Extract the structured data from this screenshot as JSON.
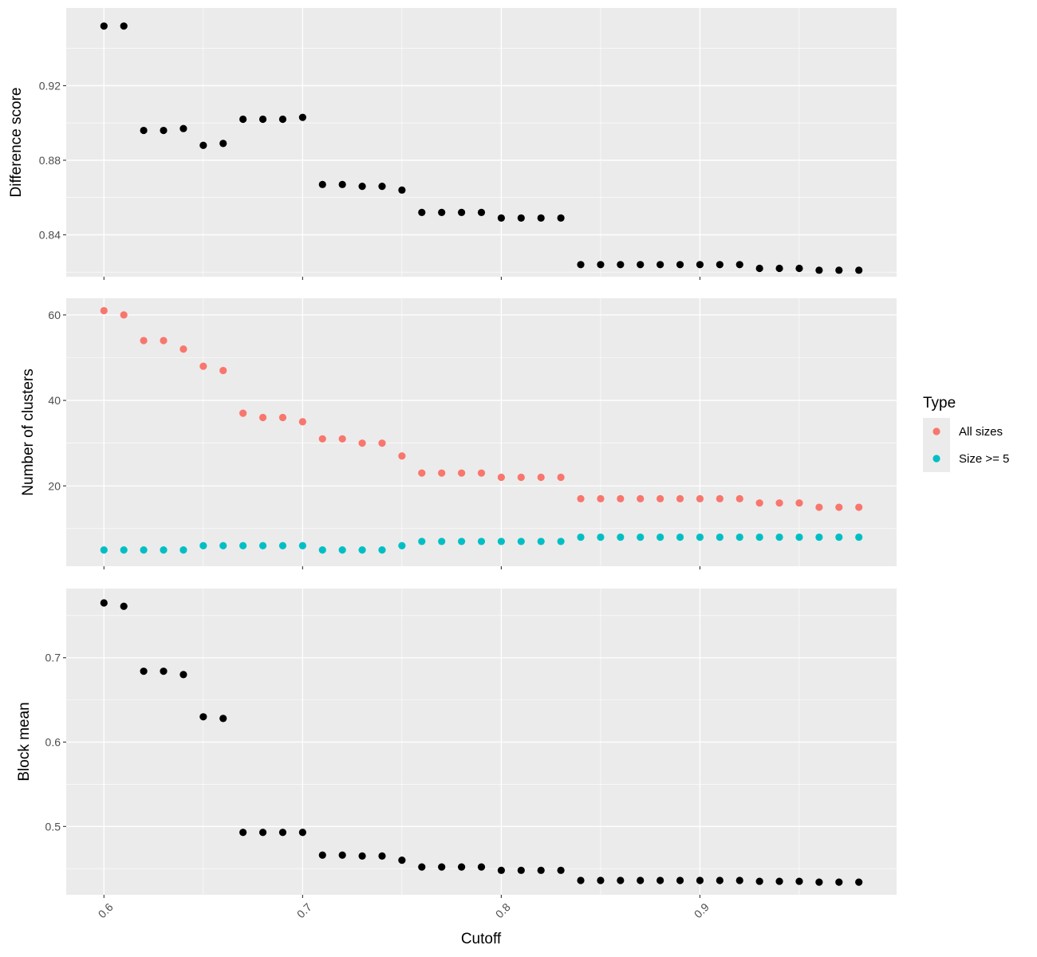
{
  "chart_data": {
    "type": "scatter",
    "xlabel": "Cutoff",
    "x_ticks": [
      0.6,
      0.7,
      0.8,
      0.9
    ],
    "x_tick_labels": [
      "0.6",
      "0.7",
      "0.8",
      "0.9"
    ],
    "xlim": [
      0.581,
      0.999
    ],
    "grid": true,
    "legend": {
      "title": "Type",
      "placement": "right",
      "entries": [
        {
          "label": "All sizes",
          "color": "#F8766D"
        },
        {
          "label": "Size >= 5",
          "color": "#00BFC4"
        }
      ]
    },
    "x": [
      0.6,
      0.61,
      0.62,
      0.63,
      0.64,
      0.65,
      0.66,
      0.67,
      0.68,
      0.69,
      0.7,
      0.71,
      0.72,
      0.73,
      0.74,
      0.75,
      0.76,
      0.77,
      0.78,
      0.79,
      0.8,
      0.81,
      0.82,
      0.83,
      0.84,
      0.85,
      0.86,
      0.87,
      0.88,
      0.89,
      0.9,
      0.91,
      0.92,
      0.93,
      0.94,
      0.95,
      0.96,
      0.97,
      0.98
    ],
    "panels": [
      {
        "ylabel": "Difference score",
        "ylim": [
          0.8175,
          0.9617
        ],
        "y_ticks": [
          0.84,
          0.88,
          0.92
        ],
        "y_tick_labels": [
          "0.84",
          "0.88",
          "0.92"
        ],
        "series": [
          {
            "color": "#000000",
            "values": [
              0.952,
              0.952,
              0.896,
              0.896,
              0.897,
              0.888,
              0.889,
              0.902,
              0.902,
              0.902,
              0.903,
              0.867,
              0.867,
              0.866,
              0.866,
              0.864,
              0.852,
              0.852,
              0.852,
              0.852,
              0.849,
              0.849,
              0.849,
              0.849,
              0.824,
              0.824,
              0.824,
              0.824,
              0.824,
              0.824,
              0.824,
              0.824,
              0.824,
              0.822,
              0.822,
              0.822,
              0.821,
              0.821,
              0.821
            ]
          }
        ]
      },
      {
        "ylabel": "Number of clusters",
        "ylim": [
          1.2,
          63.9
        ],
        "y_ticks": [
          20,
          40,
          60
        ],
        "y_tick_labels": [
          "20",
          "40",
          "60"
        ],
        "series": [
          {
            "name": "All sizes",
            "color": "#F8766D",
            "values": [
              61,
              60,
              54,
              54,
              52,
              48,
              47,
              37,
              36,
              36,
              35,
              31,
              31,
              30,
              30,
              27,
              23,
              23,
              23,
              23,
              22,
              22,
              22,
              22,
              17,
              17,
              17,
              17,
              17,
              17,
              17,
              17,
              17,
              16,
              16,
              16,
              15,
              15,
              15
            ]
          },
          {
            "name": "Size >= 5",
            "color": "#00BFC4",
            "values": [
              5,
              5,
              5,
              5,
              5,
              6,
              6,
              6,
              6,
              6,
              6,
              5,
              5,
              5,
              5,
              6,
              7,
              7,
              7,
              7,
              7,
              7,
              7,
              7,
              8,
              8,
              8,
              8,
              8,
              8,
              8,
              8,
              8,
              8,
              8,
              8,
              8,
              8,
              8
            ]
          }
        ]
      },
      {
        "ylabel": "Block mean",
        "ylim": [
          0.419,
          0.782
        ],
        "y_ticks": [
          0.5,
          0.6,
          0.7
        ],
        "y_tick_labels": [
          "0.5",
          "0.6",
          "0.7"
        ],
        "series": [
          {
            "color": "#000000",
            "values": [
              0.765,
              0.761,
              0.684,
              0.684,
              0.68,
              0.63,
              0.628,
              0.493,
              0.493,
              0.493,
              0.493,
              0.466,
              0.466,
              0.465,
              0.465,
              0.46,
              0.452,
              0.452,
              0.452,
              0.452,
              0.448,
              0.448,
              0.448,
              0.448,
              0.436,
              0.436,
              0.436,
              0.436,
              0.436,
              0.436,
              0.436,
              0.436,
              0.436,
              0.435,
              0.435,
              0.435,
              0.434,
              0.434,
              0.434
            ]
          }
        ]
      }
    ]
  }
}
